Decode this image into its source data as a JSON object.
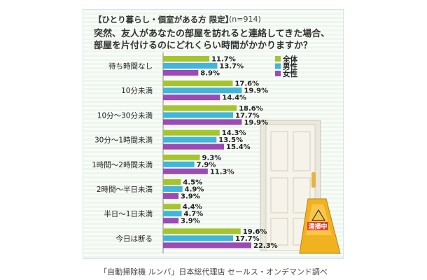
{
  "header": {
    "tag": "【ひとり暮らし・個室がある方 限定】",
    "n": "(n=914)",
    "question_line1": "突然、友人があなたの部屋を訪れると連絡してきた場合、",
    "question_line2": "部屋を片付けるのにどれくらい時間がかかりますか？"
  },
  "sign_text": "清掃中",
  "footer": "「自動掃除機 ルンバ」日本総代理店 セールス・オンデマンド調べ",
  "chart_data": {
    "type": "bar",
    "orientation": "horizontal",
    "categories": [
      "待ち時間なし",
      "10分未満",
      "10分〜30分未満",
      "30分〜1時間未満",
      "1時間〜2時間未満",
      "2時間〜半日未満",
      "半日〜1日未満",
      "今日は断る"
    ],
    "series": [
      {
        "name": "全体",
        "color": "#a6c52c",
        "values": [
          11.7,
          17.6,
          18.6,
          14.3,
          9.3,
          4.5,
          4.4,
          19.6
        ]
      },
      {
        "name": "男性",
        "color": "#3fb6dc",
        "values": [
          13.7,
          19.9,
          17.7,
          13.5,
          7.9,
          4.9,
          4.7,
          17.7
        ]
      },
      {
        "name": "女性",
        "color": "#9b4bb5",
        "values": [
          8.9,
          14.4,
          19.9,
          15.4,
          11.3,
          3.9,
          3.9,
          22.3
        ]
      }
    ],
    "value_suffix": "%",
    "legend_position": "top-right",
    "xlim": [
      0,
      22.3
    ]
  }
}
